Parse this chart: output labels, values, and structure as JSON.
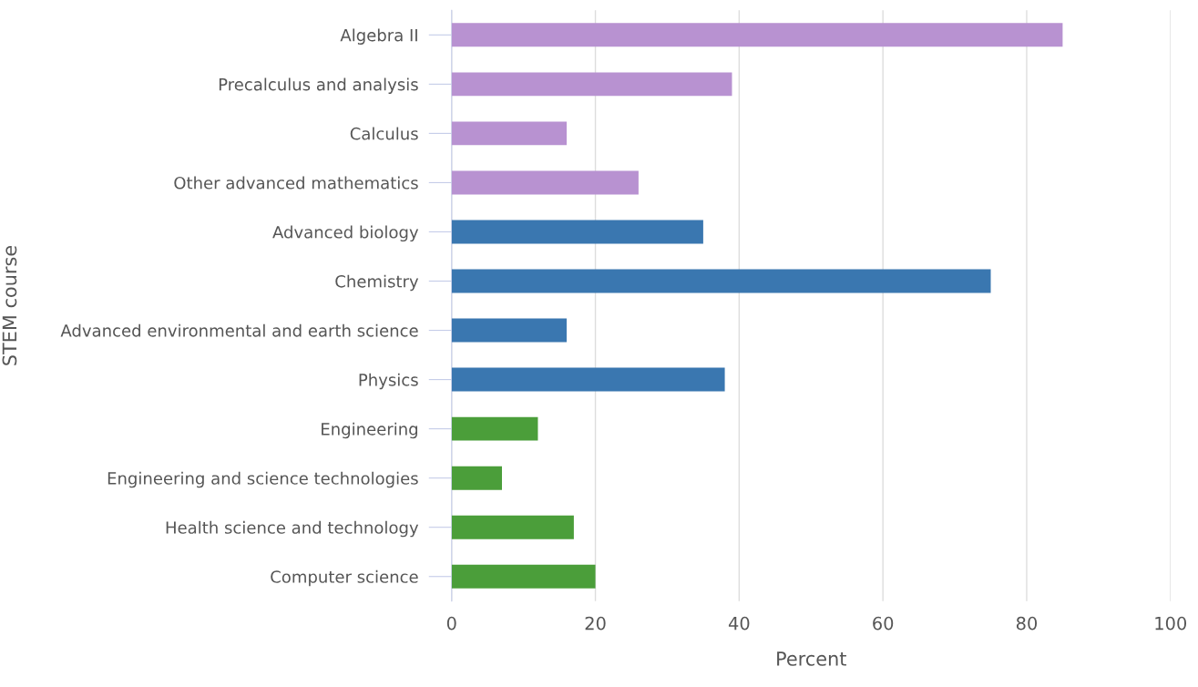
{
  "chart_data": {
    "type": "bar",
    "orientation": "horizontal",
    "xlabel": "Percent",
    "ylabel": "STEM course",
    "categories": [
      "Algebra II",
      "Precalculus and analysis",
      "Calculus",
      "Other advanced mathematics",
      "Advanced biology",
      "Chemistry",
      "Advanced environmental and earth science",
      "Physics",
      "Engineering",
      "Engineering and science technologies",
      "Health science and technology",
      "Computer science"
    ],
    "values": [
      85,
      39,
      16,
      26,
      35,
      75,
      16,
      38,
      12,
      7,
      17,
      20
    ],
    "colors": [
      "#b892d1",
      "#b892d1",
      "#b892d1",
      "#b892d1",
      "#3a77b0",
      "#3a77b0",
      "#3a77b0",
      "#3a77b0",
      "#4b9e3a",
      "#4b9e3a",
      "#4b9e3a",
      "#4b9e3a"
    ],
    "xlim": [
      0,
      100
    ],
    "xticks": [
      0,
      20,
      40,
      60,
      80,
      100
    ],
    "grid": "x",
    "legend": false
  }
}
